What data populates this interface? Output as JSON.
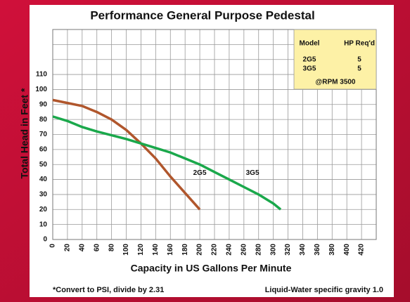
{
  "chart_data": {
    "type": "line",
    "title": "Performance General Purpose Pedestal",
    "xlabel": "Capacity in US Gallons Per Minute",
    "ylabel": "Total Head in Feet *",
    "xlim": [
      0,
      440
    ],
    "ylim": [
      0,
      140
    ],
    "xticks": [
      0,
      20,
      40,
      60,
      80,
      100,
      120,
      140,
      160,
      180,
      200,
      220,
      240,
      260,
      280,
      300,
      320,
      340,
      360,
      380,
      400,
      420
    ],
    "yticks": [
      0,
      10,
      20,
      30,
      40,
      50,
      60,
      70,
      80,
      90,
      100,
      110
    ],
    "grid": true,
    "series": [
      {
        "name": "2G5",
        "color": "#b0562c",
        "x": [
          0,
          20,
          40,
          60,
          80,
          100,
          120,
          140,
          160,
          180,
          200
        ],
        "values": [
          93,
          91,
          89,
          85,
          80,
          73,
          64,
          54,
          42,
          31,
          20
        ]
      },
      {
        "name": "3G5",
        "color": "#1aa84b",
        "x": [
          0,
          20,
          40,
          60,
          80,
          100,
          120,
          140,
          160,
          180,
          200,
          220,
          240,
          260,
          280,
          300,
          310
        ],
        "values": [
          82,
          79,
          75,
          72,
          69.5,
          67,
          64,
          61,
          58,
          54,
          50,
          45,
          40,
          35,
          30,
          24,
          20
        ]
      }
    ],
    "legend_table": {
      "header": [
        "Model",
        "HP Req'd"
      ],
      "rows": [
        [
          "2G5",
          5
        ],
        [
          "3G5",
          5
        ]
      ],
      "note": "@RPM 3500"
    },
    "footnote_left": "*Convert to PSI, divide by 2.31",
    "footnote_right": "Liquid-Water specific gravity 1.0"
  }
}
